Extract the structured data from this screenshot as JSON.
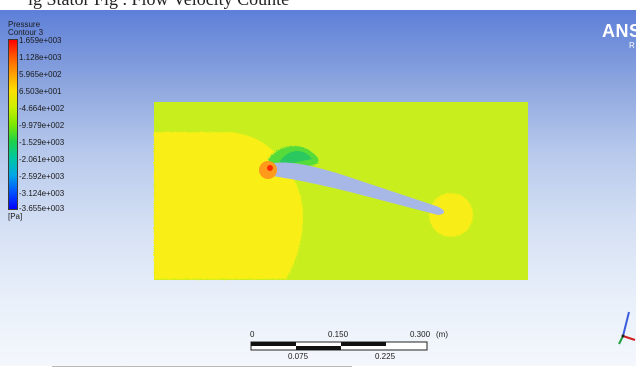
{
  "caption_fragment": "ig Stator Fig . Flow Velocity Counte",
  "contour": {
    "title_line1": "Pressure",
    "title_line2": "Contour 3",
    "levels": [
      "1.659e+003",
      "1.128e+003",
      "5.965e+002",
      "6.503e+001",
      "-4.664e+002",
      "-9.979e+002",
      "-1.529e+003",
      "-2.061e+003",
      "-2.592e+003",
      "-3.124e+003",
      "-3.655e+003"
    ],
    "unit": "[Pa]",
    "colors": {
      "max": "#ff0000",
      "mid": "#c9f000",
      "min": "#0000ff"
    }
  },
  "brand": {
    "name": "ANS",
    "sub": "R"
  },
  "scale": {
    "top_labels": [
      "0",
      "0.150",
      "0.300",
      "(m)"
    ],
    "bottom_labels": [
      "0.075",
      "0.225"
    ]
  },
  "icons": [
    "axis-triad-icon"
  ]
}
